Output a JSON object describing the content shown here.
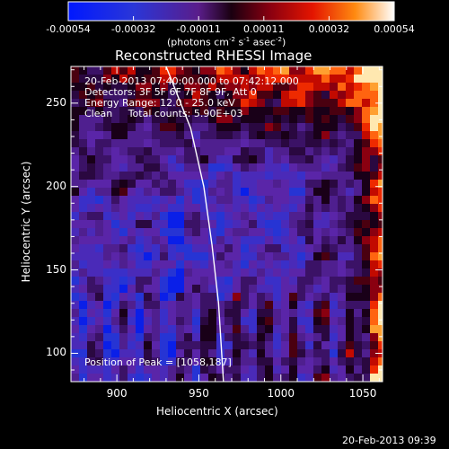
{
  "chart_data": {
    "type": "heatmap",
    "title": "Reconstructed RHESSI Image",
    "xlabel": "Heliocentric X (arcsec)",
    "ylabel": "Heliocentric Y (arcsec)",
    "x_ticks": [
      900,
      950,
      1000,
      1050
    ],
    "y_ticks": [
      100,
      150,
      200,
      250
    ],
    "xlim": [
      872,
      1062
    ],
    "ylim": [
      83,
      272
    ],
    "colorbar": {
      "ticks": [
        "-0.00054",
        "-0.00032",
        "-0.00011",
        "0.00011",
        "0.00032",
        "0.00054"
      ],
      "range": [
        -0.00054,
        0.00054
      ],
      "unit_label_parts": [
        "(photons cm",
        "-2",
        " s",
        "-1",
        " asec",
        "-2",
        ")"
      ]
    },
    "annotations": [
      "20-Feb-2013 07:40:00.000 to 07:42:12.000",
      "Detectors: 3F 5F 6F 7F 8F 9F, Att 0",
      "Energy Range: 12.0 - 25.0 keV",
      "Clean     Total counts: 5.90E+03"
    ],
    "peak_label": "Position of Peak = [1058,187]",
    "limb_curve": [
      [
        930,
        272
      ],
      [
        945,
        235
      ],
      [
        953,
        200
      ],
      [
        958,
        165
      ],
      [
        962,
        130
      ],
      [
        965,
        83
      ]
    ],
    "timestamp": "20-Feb-2013 09:39"
  }
}
